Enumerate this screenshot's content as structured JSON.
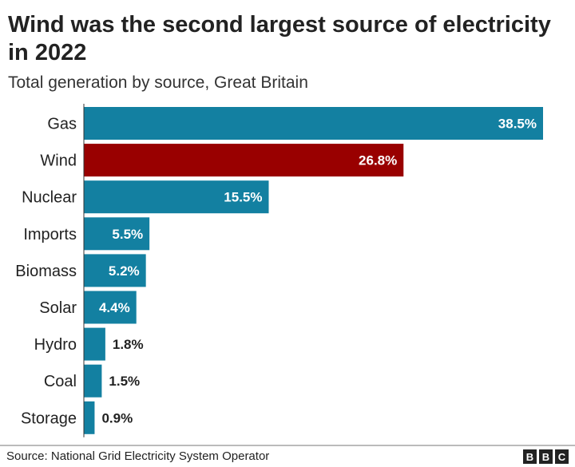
{
  "chart_data": {
    "type": "bar",
    "orientation": "horizontal",
    "title": "Wind was the second largest source of electricity in 2022",
    "subtitle": "Total generation by source, Great Britain",
    "categories": [
      "Gas",
      "Wind",
      "Nuclear",
      "Imports",
      "Biomass",
      "Solar",
      "Hydro",
      "Coal",
      "Storage"
    ],
    "values": [
      38.5,
      26.8,
      15.5,
      5.5,
      5.2,
      4.4,
      1.8,
      1.5,
      0.9
    ],
    "labels": [
      "38.5%",
      "26.8%",
      "15.5%",
      "5.5%",
      "5.2%",
      "4.4%",
      "1.8%",
      "1.5%",
      "0.9%"
    ],
    "unit": "%",
    "highlight": "Wind",
    "colors": {
      "default": "#1380a1",
      "highlight": "#990000"
    },
    "grid": false,
    "source": "Source: National Grid Electricity System Operator"
  },
  "logo": [
    "B",
    "B",
    "C"
  ]
}
